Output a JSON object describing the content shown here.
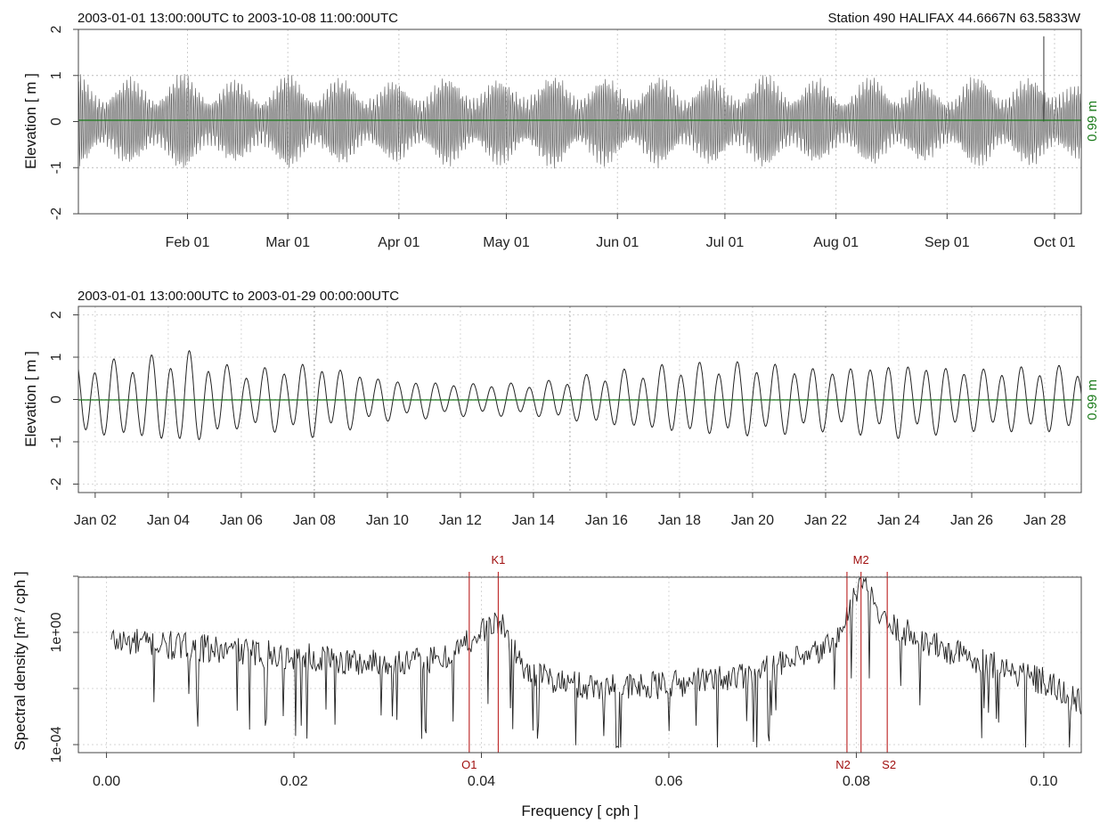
{
  "chart_data": [
    {
      "type": "line",
      "subtitle_left": "2003-01-01 13:00:00UTC to 2003-10-08 11:00:00UTC",
      "subtitle_right": "Station 490 HALIFAX 44.6667N  63.5833W",
      "ylabel": "Elevation [ m ]",
      "ylim": [
        -2,
        2
      ],
      "yticks": [
        "-2",
        "-1",
        "0",
        "1",
        "2"
      ],
      "xticks": [
        "Feb 01",
        "Mar 01",
        "Apr 01",
        "May 01",
        "Jun 01",
        "Jul 01",
        "Aug 01",
        "Sep 01",
        "Oct 01"
      ],
      "mean_label": "0.99 m",
      "series": [
        {
          "envelope_days": [
            1,
            15,
            30,
            45,
            60,
            75,
            90,
            105,
            120,
            135,
            150,
            165,
            180,
            195,
            210,
            225,
            240,
            250,
            255,
            265,
            270,
            275,
            280
          ],
          "envelope_amp": [
            0.95,
            0.85,
            0.98,
            0.8,
            0.95,
            0.85,
            0.8,
            0.9,
            0.85,
            0.95,
            0.85,
            0.9,
            0.85,
            0.95,
            0.8,
            0.9,
            0.75,
            0.9,
            0.95,
            0.85,
            0.95,
            1.0,
            0.7
          ]
        }
      ],
      "spike": {
        "day": 270,
        "value": 1.85
      }
    },
    {
      "type": "line",
      "subtitle_left": "2003-01-01 13:00:00UTC to 2003-01-29 00:00:00UTC",
      "ylabel": "Elevation [ m ]",
      "ylim": [
        -2,
        2
      ],
      "yticks": [
        "-2",
        "-1",
        "0",
        "1",
        "2"
      ],
      "xticks": [
        "Jan 02",
        "Jan 04",
        "Jan 06",
        "Jan 08",
        "Jan 10",
        "Jan 12",
        "Jan 14",
        "Jan 16",
        "Jan 18",
        "Jan 20",
        "Jan 22",
        "Jan 24",
        "Jan 26",
        "Jan 28"
      ],
      "mean_label": "0.99 m",
      "series": [
        {
          "envelope_days": [
            1,
            3,
            4.5,
            6,
            8,
            10,
            12,
            14,
            16,
            18,
            20,
            22,
            24,
            26,
            28
          ],
          "envelope_amp": [
            0.9,
            0.95,
            1.15,
            0.7,
            0.9,
            0.5,
            0.4,
            0.4,
            0.65,
            0.85,
            0.9,
            0.75,
            0.9,
            0.75,
            0.8
          ]
        }
      ]
    },
    {
      "type": "line",
      "ylabel": "Spectral density [m² / cph ]",
      "xlabel": "Frequency [ cph ]",
      "yscale": "log",
      "yticks": [
        "1e-04",
        "1e+00"
      ],
      "xlim": [
        -0.003,
        0.104
      ],
      "xticks": [
        "0.00",
        "0.02",
        "0.04",
        "0.06",
        "0.08",
        "0.10"
      ],
      "xtick_values": [
        0.0,
        0.02,
        0.04,
        0.06,
        0.08,
        0.1
      ],
      "constituents": [
        {
          "name": "O1",
          "freq": 0.0387,
          "label_pos": "bottom"
        },
        {
          "name": "K1",
          "freq": 0.0418,
          "label_pos": "top"
        },
        {
          "name": "N2",
          "freq": 0.079,
          "label_pos": "bottom"
        },
        {
          "name": "M2",
          "freq": 0.0805,
          "label_pos": "top"
        },
        {
          "name": "S2",
          "freq": 0.0833,
          "label_pos": "bottom"
        }
      ],
      "series": [
        {
          "trend_freq": [
            0.0005,
            0.01,
            0.02,
            0.03,
            0.036,
            0.0387,
            0.0418,
            0.045,
            0.05,
            0.055,
            0.06,
            0.065,
            0.07,
            0.075,
            0.078,
            0.0805,
            0.083,
            0.087,
            0.09,
            0.095,
            0.1,
            0.104
          ],
          "trend_log10": [
            -0.3,
            -0.6,
            -0.9,
            -1.15,
            -1.0,
            -0.3,
            0.4,
            -1.5,
            -1.9,
            -2.0,
            -1.9,
            -1.7,
            -1.4,
            -0.9,
            -0.3,
            1.8,
            0.3,
            -0.3,
            -0.7,
            -1.2,
            -1.8,
            -2.6
          ]
        }
      ]
    }
  ]
}
